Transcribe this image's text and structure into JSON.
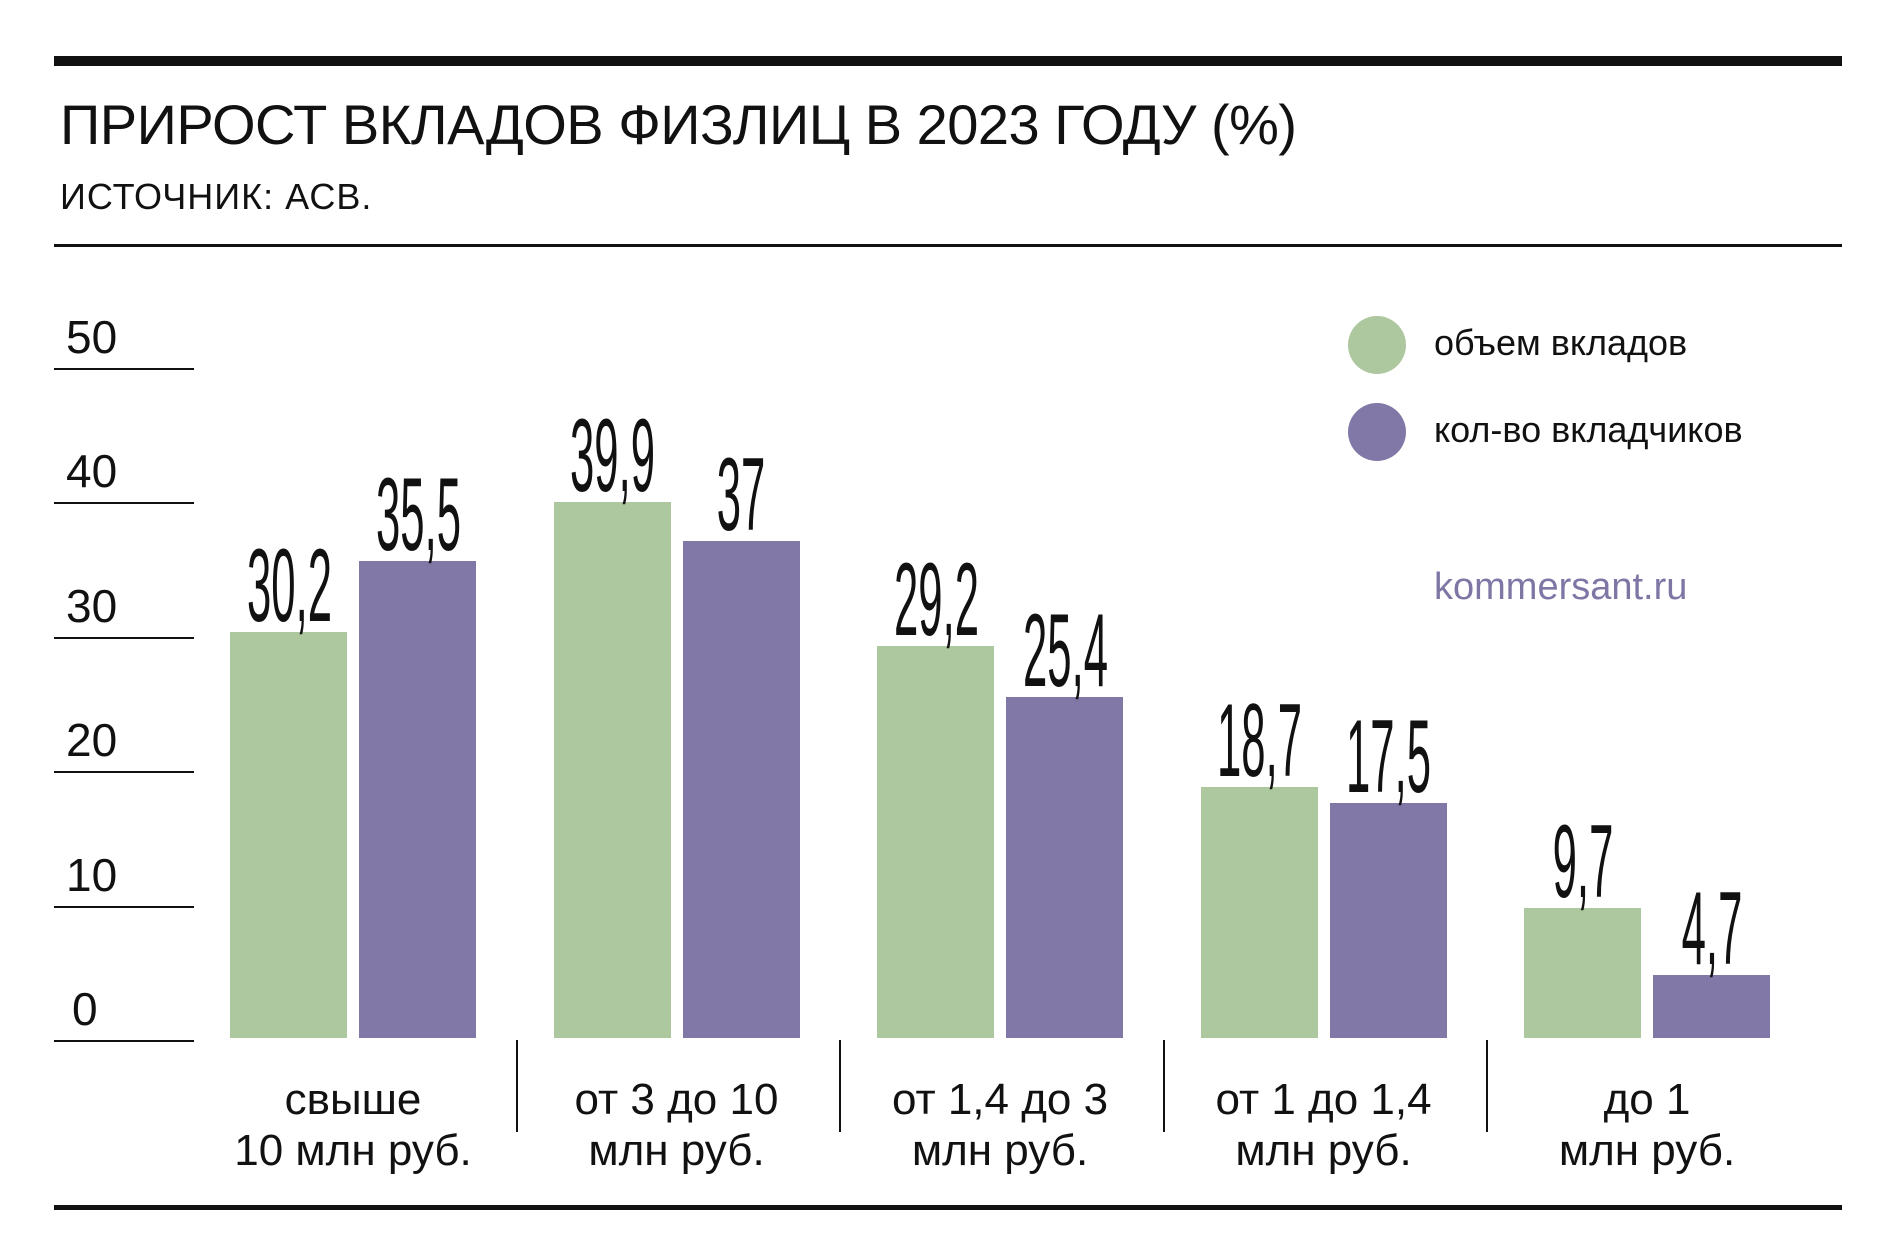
{
  "header": {
    "title": "ПРИРОСТ ВКЛАДОВ ФИЗЛИЦ В 2023 ГОДУ (%)",
    "source": "ИСТОЧНИК: АСВ."
  },
  "credit": "kommersant.ru",
  "colors": {
    "volume": "#adc79f",
    "depositors": "#8178a7"
  },
  "chart_data": {
    "type": "bar",
    "title": "ПРИРОСТ ВКЛАДОВ ФИЗЛИЦ В 2023 ГОДУ (%)",
    "ylim": [
      0,
      50
    ],
    "yticks": [
      "0",
      "10",
      "20",
      "30",
      "40",
      "50"
    ],
    "legend_position": "top-right",
    "categories": [
      [
        "свыше",
        "10 млн руб."
      ],
      [
        "от 3 до 10",
        "млн руб."
      ],
      [
        "от 1,4 до 3",
        "млн руб."
      ],
      [
        "от 1 до 1,4",
        "млн руб."
      ],
      [
        "до 1",
        "млн руб."
      ]
    ],
    "series": [
      {
        "name": "объем вкладов",
        "values": [
          30.2,
          39.9,
          29.2,
          18.7,
          9.7
        ],
        "labels": [
          "30,2",
          "39,9",
          "29,2",
          "18,7",
          "9,7"
        ]
      },
      {
        "name": "кол-во вкладчиков",
        "values": [
          35.5,
          37,
          25.4,
          17.5,
          4.7
        ],
        "labels": [
          "35,5",
          "37",
          "25,4",
          "17,5",
          "4,7"
        ]
      }
    ]
  }
}
